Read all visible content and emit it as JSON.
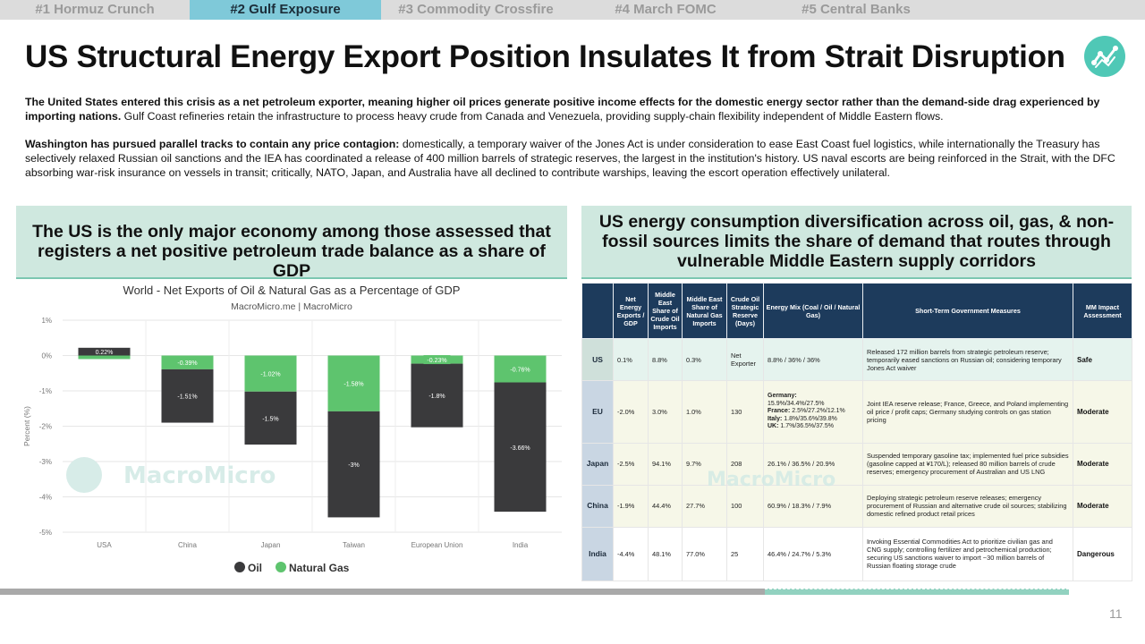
{
  "tabs": [
    {
      "label": "#1 Hormuz Crunch",
      "active": false
    },
    {
      "label": "#2 Gulf Exposure",
      "active": true
    },
    {
      "label": "#3 Commodity Crossfire",
      "active": false
    },
    {
      "label": "#4 March FOMC",
      "active": false
    },
    {
      "label": "#5 Central Banks",
      "active": false
    }
  ],
  "title": "US Structural Energy Export Position Insulates It from Strait Disruption",
  "para1": {
    "bold": "The United States entered this crisis as a net petroleum exporter, meaning higher oil prices generate positive income effects for the domestic energy sector rather than the demand-side drag experienced by importing nations.",
    "rest": " Gulf Coast refineries retain the infrastructure to process heavy crude from Canada and Venezuela, providing supply-chain flexibility independent of Middle Eastern flows."
  },
  "para2": {
    "bold": "Washington has pursued parallel tracks to contain any price contagion:",
    "rest": " domestically, a temporary waiver of the Jones Act is under consideration to ease East Coast fuel logistics, while internationally the Treasury has selectively relaxed Russian oil sanctions and the IEA has coordinated a release of 400 million barrels of strategic reserves, the largest in the institution's history. US naval escorts are being reinforced in the Strait, with the DFC absorbing war-risk insurance on vessels in transit; critically, NATO, Japan, and Australia have all declined to contribute warships, leaving the escort operation effectively unilateral."
  },
  "left_header": "The US is the only major economy among those assessed that registers a net positive petroleum trade balance as a share of GDP",
  "right_header": "US energy consumption diversification across oil, gas, & non-fossil sources limits the share of demand that routes through vulnerable Middle Eastern supply corridors",
  "watermark": "MacroMicro",
  "chart_data": {
    "type": "bar",
    "title": "World - Net Exports of Oil & Natural Gas as a Percentage of GDP",
    "subtitle": "MacroMicro.me | MacroMicro",
    "ylabel": "Percent (%)",
    "ylim": [
      -5,
      1
    ],
    "yticks": [
      "1%",
      "0%",
      "-1%",
      "-2%",
      "-3%",
      "-4%",
      "-5%"
    ],
    "ytick_values": [
      1,
      0,
      -1,
      -2,
      -3,
      -4,
      -5
    ],
    "categories": [
      "USA",
      "China",
      "Japan",
      "Taiwan",
      "European Union",
      "India"
    ],
    "series": [
      {
        "name": "Oil",
        "color": "#3a3a3c",
        "values": [
          0.22,
          -1.51,
          -1.5,
          -3,
          -1.8,
          -3.66
        ],
        "labels": [
          "0.22%",
          "-1.51%",
          "-1.5%",
          "-3%",
          "-1.8%",
          "-3.66%"
        ]
      },
      {
        "name": "Natural Gas",
        "color": "#5ec46e",
        "values": [
          -0.1,
          -0.39,
          -1.02,
          -1.58,
          -0.23,
          -0.76
        ],
        "labels": [
          "",
          "-0.39%",
          "-1.02%",
          "-1.58%",
          "-0.23%",
          "-0.76%"
        ]
      }
    ],
    "legend_position": "bottom"
  },
  "table": {
    "headers": [
      "",
      "Net Energy Exports / GDP",
      "Middle East Share of Crude Oil Imports",
      "Middle East Share of Natural Gas Imports",
      "Crude Oil Strategic Reserve (Days)",
      "Energy Mix (Coal / Oil / Natural Gas)",
      "Short-Term Government Measures",
      "MM Impact Assessment"
    ],
    "rows": [
      {
        "country": "US",
        "net": "0.1%",
        "oil": "8.8%",
        "gas": "0.3%",
        "reserve": "Net Exporter",
        "mix": "8.8% / 36% / 36%",
        "measures": "Released 172 million barrels from strategic petroleum reserve; temporarily eased sanctions on Russian oil; considering temporary Jones Act waiver",
        "assess": "Safe"
      },
      {
        "country": "EU",
        "net": "-2.0%",
        "oil": "3.0%",
        "gas": "1.0%",
        "reserve": "130",
        "mix_lines": [
          {
            "k": "Germany:",
            "v": ""
          },
          {
            "k": "",
            "v": "15.9%/34.4%/27.5%"
          },
          {
            "k": "France:",
            "v": " 2.5%/27.2%/12.1%"
          },
          {
            "k": "Italy:",
            "v": " 1.8%/35.6%/39.8%"
          },
          {
            "k": "UK:",
            "v": " 1.7%/36.5%/37.5%"
          }
        ],
        "measures": "Joint IEA reserve release; France, Greece, and Poland implementing oil price / profit caps; Germany studying controls on gas station pricing",
        "assess": "Moderate"
      },
      {
        "country": "Japan",
        "net": "-2.5%",
        "oil": "94.1%",
        "gas": "9.7%",
        "reserve": "208",
        "mix": "26.1% / 36.5% / 20.9%",
        "measures": "Suspended temporary gasoline tax; implemented fuel price subsidies (gasoline capped at ¥170/L); released 80 million barrels of crude reserves; emergency procurement of Australian and US LNG",
        "assess": "Moderate"
      },
      {
        "country": "China",
        "net": "-1.9%",
        "oil": "44.4%",
        "gas": "27.7%",
        "reserve": "100",
        "mix": "60.9% / 18.3% / 7.9%",
        "measures": "Deploying strategic petroleum reserve releases; emergency procurement of Russian and alternative crude oil sources; stabilizing domestic refined product retail prices",
        "assess": "Moderate"
      },
      {
        "country": "India",
        "net": "-4.4%",
        "oil": "48.1%",
        "gas": "77.0%",
        "reserve": "25",
        "mix": "46.4% / 24.7% / 5.3%",
        "measures": "Invoking Essential Commodities Act to prioritize civilian gas and CNG supply; controlling fertilizer and petrochemical production; securing US sanctions waiver to import ~30 million barrels of Russian floating storage crude",
        "assess": "Dangerous"
      }
    ]
  },
  "page_number": "11"
}
